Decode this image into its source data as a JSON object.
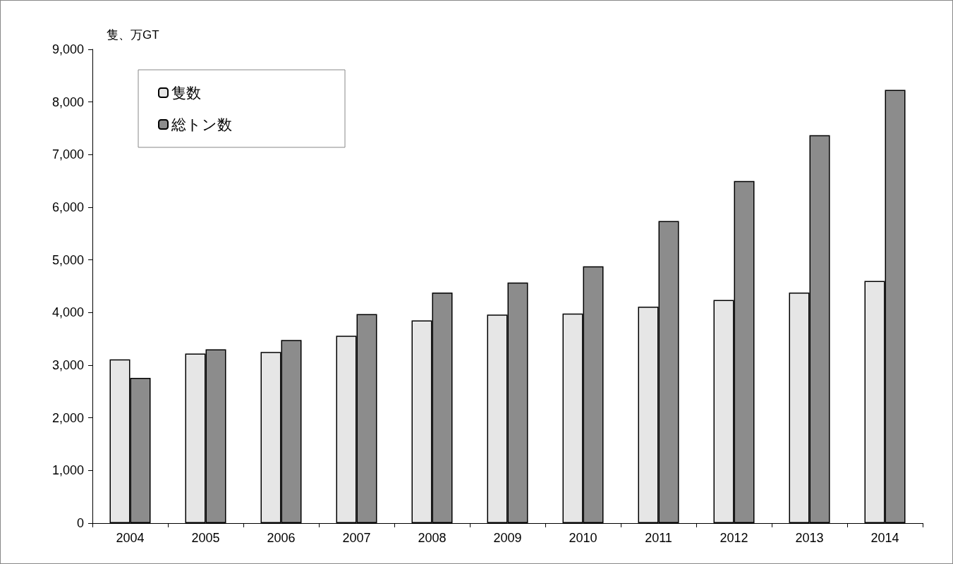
{
  "chart_data": {
    "type": "bar",
    "ylabel": "隻、万GT",
    "categories": [
      "2004",
      "2005",
      "2006",
      "2007",
      "2008",
      "2009",
      "2010",
      "2011",
      "2012",
      "2013",
      "2014"
    ],
    "series": [
      {
        "name": "隻数",
        "color": "#e6e6e6",
        "values": [
          3110,
          3220,
          3250,
          3560,
          3850,
          3960,
          3980,
          4110,
          4240,
          4380,
          4600
        ]
      },
      {
        "name": "総トン数",
        "color": "#8c8c8c",
        "values": [
          2760,
          3300,
          3480,
          3970,
          4380,
          4570,
          4880,
          5740,
          6500,
          7370,
          8230
        ]
      }
    ],
    "ylim": [
      0,
      9000
    ],
    "yticks": [
      {
        "value": 0,
        "label": "0"
      },
      {
        "value": 1000,
        "label": "1,000"
      },
      {
        "value": 2000,
        "label": "2,000"
      },
      {
        "value": 3000,
        "label": "3,000"
      },
      {
        "value": 4000,
        "label": "4,000"
      },
      {
        "value": 5000,
        "label": "5,000"
      },
      {
        "value": 6000,
        "label": "6,000"
      },
      {
        "value": 7000,
        "label": "7,000"
      },
      {
        "value": 8000,
        "label": "8,000"
      },
      {
        "value": 9000,
        "label": "9,000"
      }
    ],
    "grid": false,
    "legend": "top left"
  }
}
